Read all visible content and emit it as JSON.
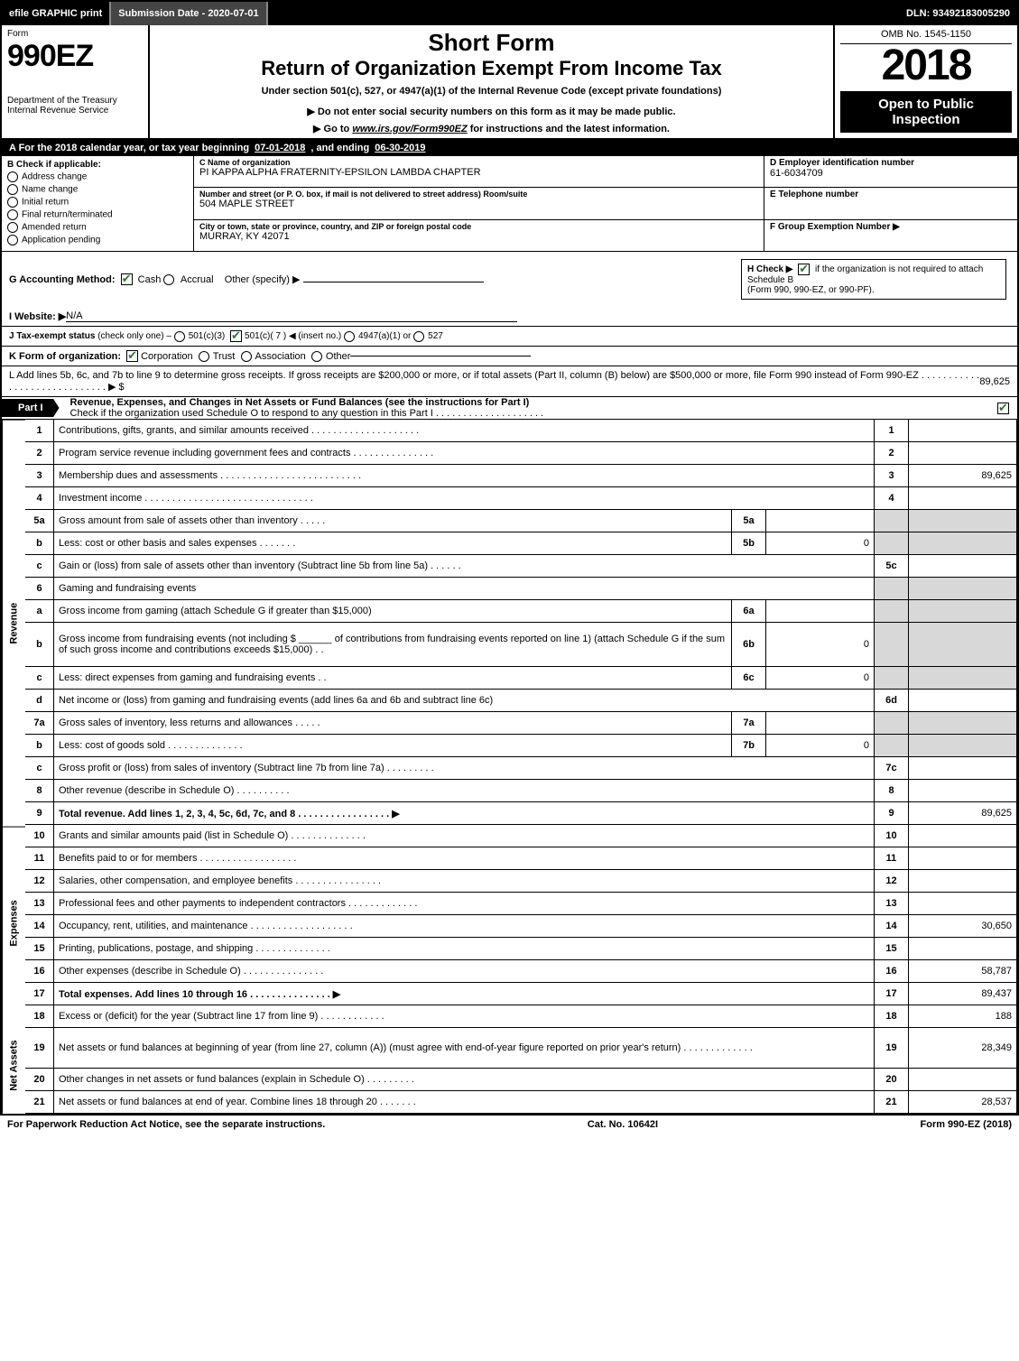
{
  "top_bar": {
    "efile": "efile GRAPHIC print",
    "submission": "Submission Date - 2020-07-01",
    "dln": "DLN: 93492183005290"
  },
  "header": {
    "form_label": "Form",
    "form_number": "990EZ",
    "dept": "Department of the Treasury",
    "irs": "Internal Revenue Service",
    "short_form": "Short Form",
    "return_title": "Return of Organization Exempt From Income Tax",
    "sub1": "Under section 501(c), 527, or 4947(a)(1) of the Internal Revenue Code (except private foundations)",
    "sub2": "▶ Do not enter social security numbers on this form as it may be made public.",
    "sub3_pre": "▶ Go to ",
    "sub3_link": "www.irs.gov/Form990EZ",
    "sub3_post": " for instructions and the latest information.",
    "omb": "OMB No. 1545-1150",
    "year": "2018",
    "open": "Open to Public Inspection"
  },
  "sectionA": {
    "label_a": "A For the 2018 calendar year, or tax year beginning",
    "begin": "07-01-2018",
    "mid": ", and ending",
    "end": "06-30-2019"
  },
  "sectionB": {
    "label": "B Check if applicable:",
    "items": [
      "Address change",
      "Name change",
      "Initial return",
      "Final return/terminated",
      "Amended return",
      "Application pending"
    ]
  },
  "sectionC": {
    "name_lbl": "C Name of organization",
    "name": "PI KAPPA ALPHA FRATERNITY-EPSILON LAMBDA CHAPTER",
    "addr_lbl": "Number and street (or P. O. box, if mail is not delivered to street address)      Room/suite",
    "addr": "504 MAPLE STREET",
    "city_lbl": "City or town, state or province, country, and ZIP or foreign postal code",
    "city": "MURRAY, KY  42071"
  },
  "sectionD": {
    "ein_lbl": "D Employer identification number",
    "ein": "61-6034709",
    "tel_lbl": "E Telephone number",
    "tel": "",
    "group_lbl": "F Group Exemption Number ▶",
    "group": ""
  },
  "rowG": {
    "label": "G Accounting Method:",
    "cash": "Cash",
    "accrual": "Accrual",
    "other": "Other (specify) ▶"
  },
  "rowH": {
    "label": "H Check ▶",
    "text1": " if the organization is not required to attach Schedule B",
    "text2": "(Form 990, 990-EZ, or 990-PF)."
  },
  "rowI": {
    "label": "I Website: ▶",
    "val": "N/A"
  },
  "rowJ": {
    "label": "J Tax-exempt status",
    "sub": "(check only one) –",
    "o1": "501(c)(3)",
    "o2": "501(c)( 7 ) ◀ (insert no.)",
    "o3": "4947(a)(1) or",
    "o4": "527"
  },
  "rowK": {
    "label": "K Form of organization:",
    "o1": "Corporation",
    "o2": "Trust",
    "o3": "Association",
    "o4": "Other"
  },
  "rowL": {
    "text": "L Add lines 5b, 6c, and 7b to line 9 to determine gross receipts. If gross receipts are $200,000 or more, or if total assets (Part II, column (B) below) are $500,000 or more, file Form 990 instead of Form 990-EZ  .  .  .  .  .  .  .  .  .  .  .  .  .  .  .  .  .  .  .  .  .  .  .  .  .  .  .  .  .  ▶ $",
    "amount": "89,625"
  },
  "partI": {
    "tag": "Part I",
    "title": "Revenue, Expenses, and Changes in Net Assets or Fund Balances (see the instructions for Part I)",
    "subline": "Check if the organization used Schedule O to respond to any question in this Part I  .  .  .  .  .  .  .  .  .  .  .  .  .  .  .  .  .  .  .  ."
  },
  "sections": {
    "revenue": "Revenue",
    "expenses": "Expenses",
    "netassets": "Net Assets"
  },
  "lines": [
    {
      "n": "1",
      "d": "Contributions, gifts, grants, and similar amounts received  .  .  .  .  .  .  .  .  .  .  .  .  .  .  .  .  .  .  .  .",
      "r": "1",
      "a": ""
    },
    {
      "n": "2",
      "d": "Program service revenue including government fees and contracts  .  .  .  .  .  .  .  .  .  .  .  .  .  .  .",
      "r": "2",
      "a": ""
    },
    {
      "n": "3",
      "d": "Membership dues and assessments  .  .  .  .  .  .  .  .  .  .  .  .  .  .  .  .  .  .  .  .  .  .  .  .  .  .",
      "r": "3",
      "a": "89,625"
    },
    {
      "n": "4",
      "d": "Investment income  .  .  .  .  .  .  .  .  .  .  .  .  .  .  .  .  .  .  .  .  .  .  .  .  .  .  .  .  .  .  .",
      "r": "4",
      "a": ""
    },
    {
      "n": "5a",
      "d": "Gross amount from sale of assets other than inventory  .  .  .  .  .",
      "sc": "5a",
      "sv": "",
      "grey": true
    },
    {
      "n": "b",
      "d": "Less: cost or other basis and sales expenses  .  .  .  .  .  .  .",
      "sc": "5b",
      "sv": "0",
      "grey": true
    },
    {
      "n": "c",
      "d": "Gain or (loss) from sale of assets other than inventory (Subtract line 5b from line 5a)  .  .  .  .  .  .",
      "r": "5c",
      "a": ""
    },
    {
      "n": "6",
      "d": "Gaming and fundraising events",
      "grey": true,
      "onlydesc": true
    },
    {
      "n": "a",
      "d": "Gross income from gaming (attach Schedule G if greater than $15,000)",
      "sc": "6a",
      "sv": "",
      "grey": true
    },
    {
      "n": "b",
      "d": "Gross income from fundraising events (not including $ ______ of contributions from fundraising events reported on line 1) (attach Schedule G if the sum of such gross income and contributions exceeds $15,000)  .  .",
      "sc": "6b",
      "sv": "0",
      "grey": true,
      "tall": true
    },
    {
      "n": "c",
      "d": "Less: direct expenses from gaming and fundraising events    .  .",
      "sc": "6c",
      "sv": "0",
      "grey": true
    },
    {
      "n": "d",
      "d": "Net income or (loss) from gaming and fundraising events (add lines 6a and 6b and subtract line 6c)",
      "r": "6d",
      "a": ""
    },
    {
      "n": "7a",
      "d": "Gross sales of inventory, less returns and allowances  .  .  .  .  .",
      "sc": "7a",
      "sv": "",
      "grey": true
    },
    {
      "n": "b",
      "d": "Less: cost of goods sold    .  .  .  .  .  .  .  .  .  .  .  .  .  .",
      "sc": "7b",
      "sv": "0",
      "grey": true
    },
    {
      "n": "c",
      "d": "Gross profit or (loss) from sales of inventory (Subtract line 7b from line 7a)  .  .  .  .  .  .  .  .  .",
      "r": "7c",
      "a": ""
    },
    {
      "n": "8",
      "d": "Other revenue (describe in Schedule O)        .  .  .  .  .  .  .  .  .  .",
      "r": "8",
      "a": ""
    },
    {
      "n": "9",
      "d": "Total revenue. Add lines 1, 2, 3, 4, 5c, 6d, 7c, and 8  .  .  .  .  .  .  .  .  .  .  .  .  .  .  .  .  .  ▶",
      "r": "9",
      "a": "89,625",
      "bold": true
    },
    {
      "n": "10",
      "d": "Grants and similar amounts paid (list in Schedule O)    .  .  .  .  .  .  .  .  .  .  .  .  .  .",
      "r": "10",
      "a": ""
    },
    {
      "n": "11",
      "d": "Benefits paid to or for members    .  .  .  .  .  .  .  .  .  .  .  .  .  .  .  .  .  .",
      "r": "11",
      "a": ""
    },
    {
      "n": "12",
      "d": "Salaries, other compensation, and employee benefits .  .  .  .  .  .  .  .  .  .  .  .  .  .  .  .",
      "r": "12",
      "a": ""
    },
    {
      "n": "13",
      "d": "Professional fees and other payments to independent contractors  .  .  .  .  .  .  .  .  .  .  .  .  .",
      "r": "13",
      "a": ""
    },
    {
      "n": "14",
      "d": "Occupancy, rent, utilities, and maintenance .  .  .  .  .  .  .  .  .  .  .  .  .  .  .  .  .  .  .",
      "r": "14",
      "a": "30,650"
    },
    {
      "n": "15",
      "d": "Printing, publications, postage, and shipping    .  .  .  .  .  .  .  .  .  .  .  .  .  .",
      "r": "15",
      "a": ""
    },
    {
      "n": "16",
      "d": "Other expenses (describe in Schedule O)    .  .  .  .  .  .  .  .  .  .  .  .  .  .  .",
      "r": "16",
      "a": "58,787"
    },
    {
      "n": "17",
      "d": "Total expenses. Add lines 10 through 16    .  .  .  .  .  .  .  .  .  .  .  .  .  .  .  ▶",
      "r": "17",
      "a": "89,437",
      "bold": true
    },
    {
      "n": "18",
      "d": "Excess or (deficit) for the year (Subtract line 17 from line 9)    .  .  .  .  .  .  .  .  .  .  .  .",
      "r": "18",
      "a": "188"
    },
    {
      "n": "19",
      "d": "Net assets or fund balances at beginning of year (from line 27, column (A)) (must agree with end-of-year figure reported on prior year's return)    .  .  .  .  .  .  .  .  .  .  .  .  .",
      "r": "19",
      "a": "28,349",
      "tall": true
    },
    {
      "n": "20",
      "d": "Other changes in net assets or fund balances (explain in Schedule O)  .  .  .  .  .  .  .  .  .",
      "r": "20",
      "a": ""
    },
    {
      "n": "21",
      "d": "Net assets or fund balances at end of year. Combine lines 18 through 20    .  .  .  .  .  .  .",
      "r": "21",
      "a": "28,537"
    }
  ],
  "section_spans": {
    "revenue": {
      "start": 0,
      "end": 16
    },
    "expenses": {
      "start": 17,
      "end": 24
    },
    "netassets": {
      "start": 25,
      "end": 28
    }
  },
  "footer": {
    "left": "For Paperwork Reduction Act Notice, see the separate instructions.",
    "mid": "Cat. No. 10642I",
    "right": "Form 990-EZ (2018)"
  }
}
